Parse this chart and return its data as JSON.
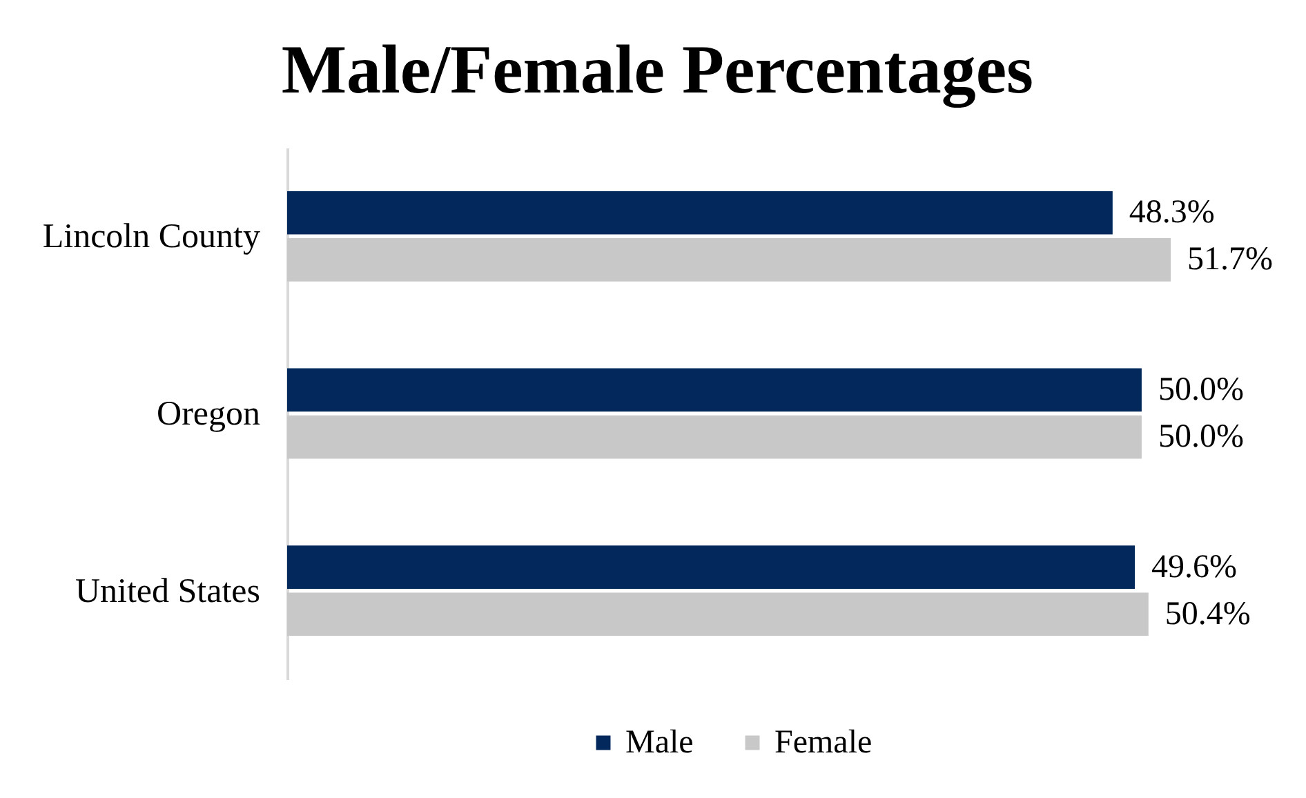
{
  "chart_data": {
    "type": "bar",
    "orientation": "horizontal",
    "title": "Male/Female Percentages",
    "categories": [
      "Lincoln County",
      "Oregon",
      "United States"
    ],
    "series": [
      {
        "name": "Male",
        "color": "#03295c",
        "values": [
          48.3,
          50.0,
          49.6
        ],
        "value_labels": [
          "48.3%",
          "50.0%",
          "49.6%"
        ]
      },
      {
        "name": "Female",
        "color": "#c8c8c8",
        "values": [
          51.7,
          50.0,
          50.4
        ],
        "value_labels": [
          "51.7%",
          "50.0%",
          "50.4%"
        ]
      }
    ],
    "legend": "bottom",
    "tick_labels": "y"
  }
}
